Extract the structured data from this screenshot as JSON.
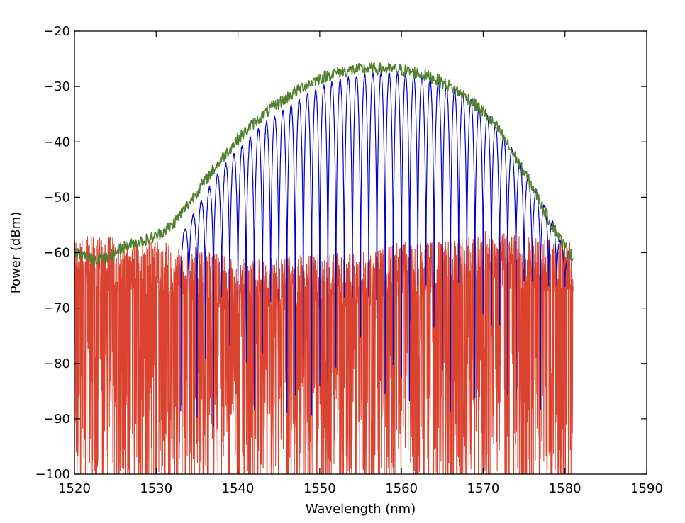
{
  "chart_data": {
    "type": "line",
    "title": "",
    "xlabel": "Wavelength (nm)",
    "ylabel": "Power (dBm)",
    "xlim": [
      1520,
      1590
    ],
    "ylim": [
      -100,
      -20
    ],
    "xticks": [
      1520,
      1530,
      1540,
      1550,
      1560,
      1570,
      1580,
      1590
    ],
    "yticks": [
      -100,
      -90,
      -80,
      -70,
      -60,
      -50,
      -40,
      -30,
      -20
    ],
    "x_tick_labels": [
      "1520",
      "1530",
      "1540",
      "1550",
      "1560",
      "1570",
      "1580",
      "1590"
    ],
    "y_tick_labels": [
      "−100",
      "−90",
      "−80",
      "−70",
      "−60",
      "−50",
      "−40",
      "−30",
      "−20"
    ],
    "grid": false,
    "legend": "none",
    "data_range_x": [
      1520,
      1581
    ],
    "series": [
      {
        "color": "#d9432f",
        "style": "dense noise floor with random dropouts to -100",
        "x": [
          1520,
          1525,
          1530,
          1535,
          1540,
          1545,
          1550,
          1555,
          1560,
          1565,
          1570,
          1575,
          1580,
          1581
        ],
        "values": [
          -62,
          -62,
          -63,
          -64,
          -66,
          -66,
          -65,
          -65,
          -63,
          -63,
          -61,
          -62,
          -63,
          -63
        ]
      },
      {
        "color": "#0000cc",
        "style": "comb of peaks, spacing ~1 nm, dips to noise floor",
        "peak_spacing_nm": 1.0,
        "x": [
          1533,
          1535,
          1537,
          1539,
          1541,
          1543,
          1545,
          1547,
          1549,
          1551,
          1553,
          1555,
          1557,
          1559,
          1561,
          1563,
          1565,
          1567,
          1569,
          1571,
          1573,
          1575,
          1577,
          1579,
          1580
        ],
        "values": [
          -57,
          -52,
          -47,
          -43,
          -40,
          -37,
          -35,
          -33,
          -31,
          -29.5,
          -28.5,
          -28,
          -27.5,
          -27.5,
          -28,
          -28.5,
          -29.5,
          -31,
          -33,
          -36,
          -40,
          -45,
          -50,
          -56,
          -60
        ]
      },
      {
        "color": "#4f7f2f",
        "style": "envelope, noisy",
        "x": [
          1520,
          1522,
          1524,
          1526,
          1528,
          1530,
          1532,
          1534,
          1536,
          1538,
          1540,
          1542,
          1544,
          1546,
          1548,
          1550,
          1552,
          1554,
          1556,
          1558,
          1560,
          1562,
          1564,
          1566,
          1568,
          1570,
          1572,
          1574,
          1576,
          1578,
          1580,
          1581
        ],
        "values": [
          -60,
          -61,
          -61,
          -59,
          -58,
          -57,
          -55,
          -51,
          -47,
          -43,
          -39.5,
          -36.5,
          -34,
          -32,
          -30,
          -28.5,
          -27.5,
          -27,
          -26.8,
          -26.8,
          -27,
          -27.6,
          -28.5,
          -30,
          -32,
          -34.5,
          -38,
          -43,
          -48,
          -54,
          -59,
          -61
        ]
      }
    ]
  }
}
